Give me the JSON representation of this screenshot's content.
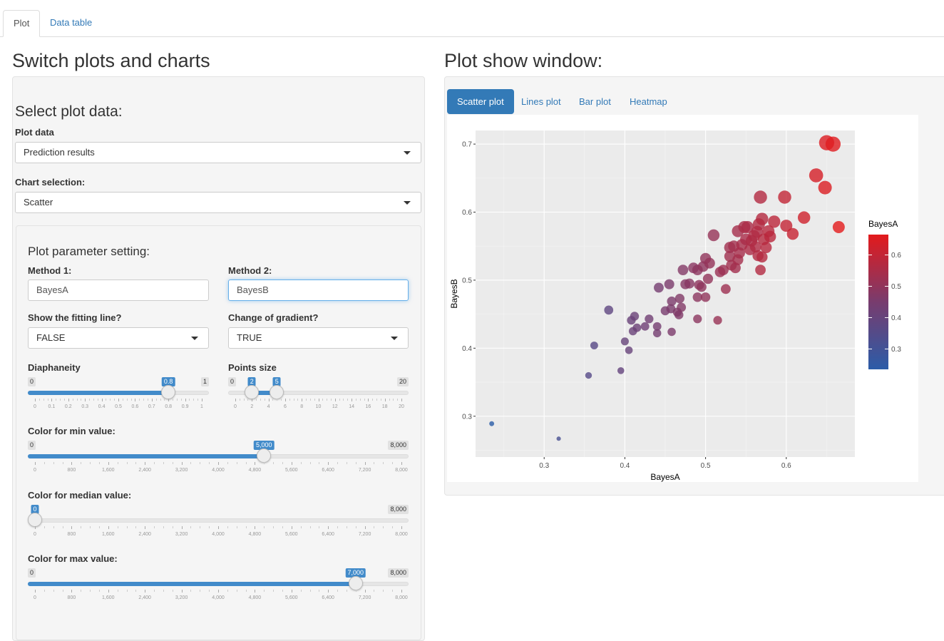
{
  "top_tabs": [
    "Plot",
    "Data table"
  ],
  "left": {
    "heading": "Switch plots and charts",
    "section_title": "Select plot data:",
    "plot_data_label": "Plot data",
    "plot_data_value": "Prediction results",
    "chart_selection_label": "Chart selection:",
    "chart_selection_value": "Scatter",
    "param_title": "Plot parameter setting:",
    "method1_label": "Method 1:",
    "method1_value": "BayesA",
    "method2_label": "Method 2:",
    "method2_value": "BayesB",
    "fitting_label": "Show the fitting line?",
    "fitting_value": "FALSE",
    "gradient_label": "Change of gradient?",
    "gradient_value": "TRUE",
    "diaphaneity": {
      "label": "Diaphaneity",
      "min": "0",
      "max": "1",
      "value": "0.8",
      "value_num": 0.8,
      "ticks": [
        "0",
        "0.1",
        "0.2",
        "0.3",
        "0.4",
        "0.5",
        "0.6",
        "0.7",
        "0.8",
        "0.9",
        "1"
      ]
    },
    "points_size": {
      "label": "Points size",
      "min": "0",
      "max": "20",
      "low": "2",
      "high": "5",
      "low_num": 2,
      "high_num": 5,
      "ticks": [
        "0",
        "2",
        "4",
        "6",
        "8",
        "10",
        "12",
        "14",
        "16",
        "18",
        "20"
      ]
    },
    "color_min": {
      "label": "Color for min value:",
      "min": "0",
      "max": "8,000",
      "value": "5,000",
      "value_num": 5000,
      "ticks": [
        "0",
        "800",
        "1,600",
        "2,400",
        "3,200",
        "4,000",
        "4,800",
        "5,600",
        "6,400",
        "7,200",
        "8,000"
      ]
    },
    "color_median": {
      "label": "Color for median value:",
      "min": "0",
      "max": "8,000",
      "value": "0",
      "value_num": 0,
      "ticks": [
        "0",
        "800",
        "1,600",
        "2,400",
        "3,200",
        "4,000",
        "4,800",
        "5,600",
        "6,400",
        "7,200",
        "8,000"
      ]
    },
    "color_max": {
      "label": "Color for max value:",
      "min": "0",
      "max": "8,000",
      "value": "7,000",
      "value_num": 7000,
      "ticks": [
        "0",
        "800",
        "1,600",
        "2,400",
        "3,200",
        "4,000",
        "4,800",
        "5,600",
        "6,400",
        "7,200",
        "8,000"
      ]
    }
  },
  "right": {
    "heading": "Plot show window:",
    "tabs": [
      "Scatter plot",
      "Lines plot",
      "Bar plot",
      "Heatmap"
    ]
  },
  "colors": {
    "accent": "#337ab7",
    "low": "#2b5ca8",
    "high": "#e31a1c",
    "panel_bg": "#ebebeb"
  },
  "chart_data": {
    "type": "scatter",
    "xlabel": "BayesA",
    "ylabel": "BayesB",
    "xlim": [
      0.215,
      0.685
    ],
    "ylim": [
      0.24,
      0.72
    ],
    "xticks": [
      0.3,
      0.4,
      0.5,
      0.6
    ],
    "yticks": [
      0.3,
      0.4,
      0.5,
      0.6,
      0.7
    ],
    "xtick_labels": [
      "0.3",
      "0.4",
      "0.5",
      "0.6"
    ],
    "ytick_labels": [
      "0.3",
      "0.4",
      "0.5",
      "0.6",
      "0.7"
    ],
    "legend_title": "BayesA",
    "legend_ticks": [
      0.3,
      0.4,
      0.5,
      0.6
    ],
    "legend_tick_labels": [
      "0.3",
      "0.4",
      "0.5",
      "0.6"
    ],
    "legend_range": [
      0.235,
      0.665
    ],
    "legend_placement": "right",
    "grid": true,
    "points": [
      [
        0.235,
        0.289
      ],
      [
        0.318,
        0.267
      ],
      [
        0.355,
        0.36
      ],
      [
        0.362,
        0.404
      ],
      [
        0.38,
        0.456
      ],
      [
        0.395,
        0.367
      ],
      [
        0.4,
        0.41
      ],
      [
        0.408,
        0.441
      ],
      [
        0.41,
        0.425
      ],
      [
        0.412,
        0.447
      ],
      [
        0.415,
        0.43
      ],
      [
        0.405,
        0.397
      ],
      [
        0.425,
        0.432
      ],
      [
        0.43,
        0.443
      ],
      [
        0.44,
        0.422
      ],
      [
        0.44,
        0.432
      ],
      [
        0.442,
        0.489
      ],
      [
        0.45,
        0.455
      ],
      [
        0.455,
        0.494
      ],
      [
        0.457,
        0.458
      ],
      [
        0.458,
        0.469
      ],
      [
        0.458,
        0.424
      ],
      [
        0.465,
        0.453
      ],
      [
        0.467,
        0.449
      ],
      [
        0.468,
        0.473
      ],
      [
        0.47,
        0.46
      ],
      [
        0.472,
        0.515
      ],
      [
        0.475,
        0.494
      ],
      [
        0.48,
        0.495
      ],
      [
        0.485,
        0.518
      ],
      [
        0.49,
        0.475
      ],
      [
        0.49,
        0.443
      ],
      [
        0.49,
        0.515
      ],
      [
        0.492,
        0.493
      ],
      [
        0.495,
        0.49
      ],
      [
        0.497,
        0.52
      ],
      [
        0.5,
        0.475
      ],
      [
        0.5,
        0.532
      ],
      [
        0.503,
        0.502
      ],
      [
        0.505,
        0.525
      ],
      [
        0.51,
        0.566
      ],
      [
        0.515,
        0.441
      ],
      [
        0.518,
        0.512
      ],
      [
        0.522,
        0.515
      ],
      [
        0.525,
        0.487
      ],
      [
        0.53,
        0.548
      ],
      [
        0.53,
        0.535
      ],
      [
        0.532,
        0.522
      ],
      [
        0.535,
        0.55
      ],
      [
        0.537,
        0.518
      ],
      [
        0.54,
        0.572
      ],
      [
        0.54,
        0.53
      ],
      [
        0.542,
        0.54
      ],
      [
        0.545,
        0.552
      ],
      [
        0.548,
        0.578
      ],
      [
        0.55,
        0.56
      ],
      [
        0.552,
        0.578
      ],
      [
        0.555,
        0.545
      ],
      [
        0.557,
        0.558
      ],
      [
        0.56,
        0.565
      ],
      [
        0.562,
        0.549
      ],
      [
        0.564,
        0.571
      ],
      [
        0.565,
        0.536
      ],
      [
        0.566,
        0.582
      ],
      [
        0.568,
        0.515
      ],
      [
        0.57,
        0.534
      ],
      [
        0.57,
        0.59
      ],
      [
        0.572,
        0.56
      ],
      [
        0.575,
        0.548
      ],
      [
        0.578,
        0.572
      ],
      [
        0.58,
        0.564
      ],
      [
        0.585,
        0.586
      ],
      [
        0.568,
        0.622
      ],
      [
        0.598,
        0.622
      ],
      [
        0.6,
        0.58
      ],
      [
        0.608,
        0.568
      ],
      [
        0.622,
        0.592
      ],
      [
        0.637,
        0.654
      ],
      [
        0.65,
        0.702
      ],
      [
        0.648,
        0.636
      ],
      [
        0.658,
        0.7
      ],
      [
        0.665,
        0.578
      ]
    ]
  }
}
